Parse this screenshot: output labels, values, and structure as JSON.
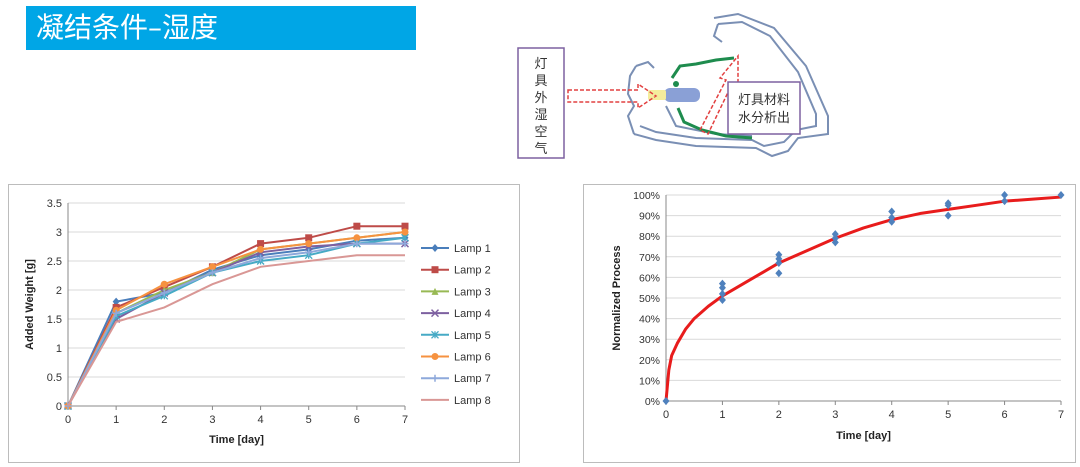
{
  "slide": {
    "title": "凝结条件–湿度"
  },
  "diagram": {
    "left_label": "灯具外湿空气",
    "right_label_line1": "灯具材料",
    "right_label_line2": "水分析出"
  },
  "chart_data": [
    {
      "type": "line",
      "title": "",
      "xlabel": "Time [day]",
      "ylabel": "Added Weight [g]",
      "x": [
        0,
        1,
        2,
        3,
        4,
        5,
        6,
        7
      ],
      "xlim": [
        0,
        7
      ],
      "ylim": [
        0,
        3.5
      ],
      "yticks": [
        0,
        0.5,
        1,
        1.5,
        2,
        2.5,
        3,
        3.5
      ],
      "legend_position": "right",
      "grid": "horizontal",
      "series": [
        {
          "name": "Lamp 1",
          "color": "#4a7ebb",
          "marker": "diamond",
          "values": [
            0,
            1.8,
            1.95,
            2.35,
            2.6,
            2.7,
            2.85,
            2.9
          ]
        },
        {
          "name": "Lamp 2",
          "color": "#be4b48",
          "marker": "square",
          "values": [
            0,
            1.7,
            2.05,
            2.4,
            2.8,
            2.9,
            3.1,
            3.1
          ]
        },
        {
          "name": "Lamp 3",
          "color": "#98b954",
          "marker": "triangle",
          "values": [
            0,
            1.6,
            2.0,
            2.3,
            2.7,
            2.8,
            2.9,
            3.0
          ]
        },
        {
          "name": "Lamp 4",
          "color": "#7d60a0",
          "marker": "x",
          "values": [
            0,
            1.5,
            1.95,
            2.3,
            2.65,
            2.75,
            2.8,
            2.8
          ]
        },
        {
          "name": "Lamp 5",
          "color": "#46aac5",
          "marker": "star",
          "values": [
            0,
            1.55,
            1.9,
            2.3,
            2.5,
            2.6,
            2.8,
            2.9
          ]
        },
        {
          "name": "Lamp 6",
          "color": "#f69240",
          "marker": "circle",
          "values": [
            0,
            1.65,
            2.1,
            2.4,
            2.7,
            2.8,
            2.9,
            3.0
          ]
        },
        {
          "name": "Lamp 7",
          "color": "#8ea9db",
          "marker": "plus",
          "values": [
            0,
            1.6,
            1.95,
            2.3,
            2.55,
            2.65,
            2.8,
            2.8
          ]
        },
        {
          "name": "Lamp 8",
          "color": "#d99795",
          "marker": "none",
          "values": [
            0,
            1.45,
            1.7,
            2.1,
            2.4,
            2.5,
            2.6,
            2.6
          ]
        }
      ]
    },
    {
      "type": "scatter",
      "title": "",
      "xlabel": "Time [day]",
      "ylabel": "Normalized Process",
      "xlim": [
        0,
        7
      ],
      "ylim": [
        0,
        1
      ],
      "yticks": [
        "0%",
        "10%",
        "20%",
        "30%",
        "40%",
        "50%",
        "60%",
        "70%",
        "80%",
        "90%",
        "100%"
      ],
      "xticks": [
        0,
        1,
        2,
        3,
        4,
        5,
        6,
        7
      ],
      "grid": "horizontal",
      "points_color": "#4f81bd",
      "fit_color": "#e81c1c",
      "points": [
        [
          0,
          0
        ],
        [
          1,
          0.49
        ],
        [
          1,
          0.52
        ],
        [
          1,
          0.55
        ],
        [
          1,
          0.57
        ],
        [
          2,
          0.62
        ],
        [
          2,
          0.67
        ],
        [
          2,
          0.69
        ],
        [
          2,
          0.71
        ],
        [
          3,
          0.77
        ],
        [
          3,
          0.79
        ],
        [
          3,
          0.81
        ],
        [
          4,
          0.87
        ],
        [
          4,
          0.89
        ],
        [
          4,
          0.92
        ],
        [
          5,
          0.9
        ],
        [
          5,
          0.95
        ],
        [
          5,
          0.96
        ],
        [
          6,
          0.97
        ],
        [
          6,
          1.0
        ],
        [
          7,
          1.0
        ]
      ],
      "fit_curve": [
        [
          0,
          0
        ],
        [
          0.05,
          0.15
        ],
        [
          0.1,
          0.22
        ],
        [
          0.2,
          0.28
        ],
        [
          0.35,
          0.35
        ],
        [
          0.5,
          0.4
        ],
        [
          0.75,
          0.46
        ],
        [
          1,
          0.51
        ],
        [
          1.5,
          0.59
        ],
        [
          2,
          0.67
        ],
        [
          2.5,
          0.73
        ],
        [
          3,
          0.79
        ],
        [
          3.5,
          0.84
        ],
        [
          4,
          0.88
        ],
        [
          4.5,
          0.91
        ],
        [
          5,
          0.93
        ],
        [
          5.5,
          0.95
        ],
        [
          6,
          0.97
        ],
        [
          6.5,
          0.98
        ],
        [
          7,
          0.99
        ]
      ]
    }
  ]
}
